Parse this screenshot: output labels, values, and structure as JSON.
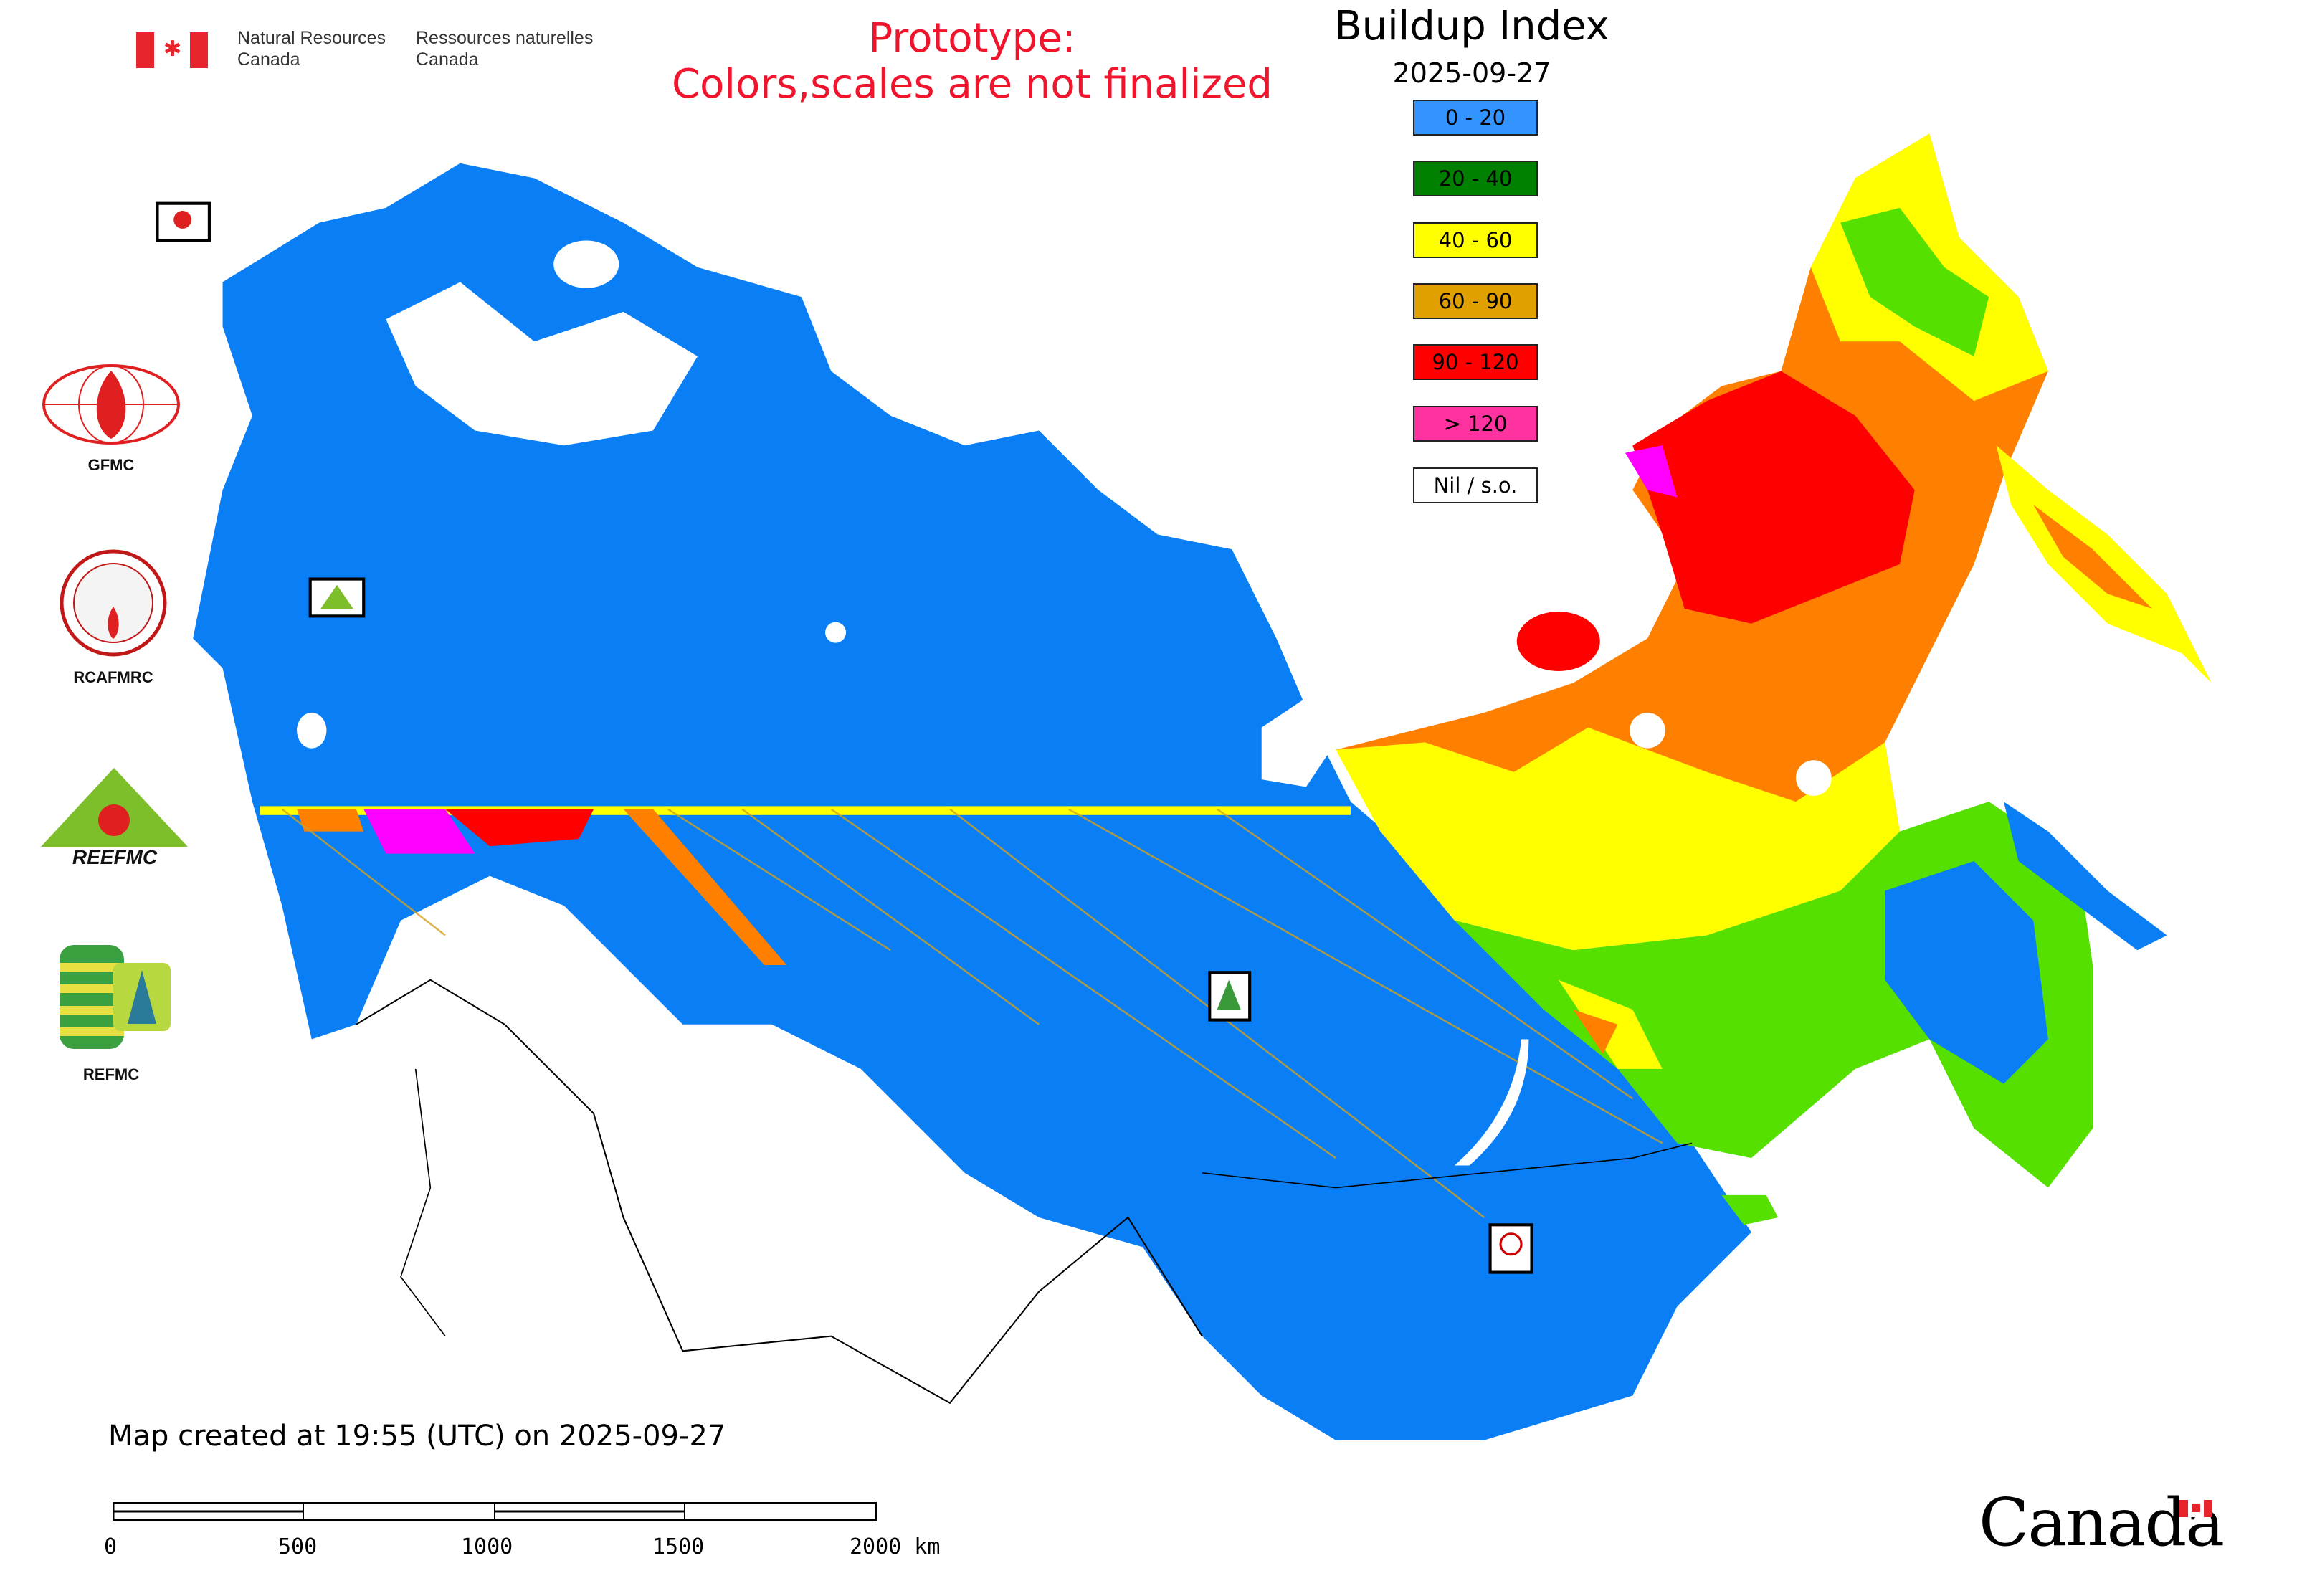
{
  "header": {
    "agency_en": [
      "Natural Resources",
      "Canada"
    ],
    "agency_fr": [
      "Ressources naturelles",
      "Canada"
    ],
    "prototype_line1": "Prototype:",
    "prototype_line2": "Colors,scales are not finalized"
  },
  "legend": {
    "title": "Buildup Index",
    "date": "2025-09-27",
    "items": [
      {
        "label": "0 - 20",
        "color": "#3393ff"
      },
      {
        "label": "20 - 40",
        "color": "#007f00"
      },
      {
        "label": "40 - 60",
        "color": "#ffff00"
      },
      {
        "label": "60 - 90",
        "color": "#e0a000"
      },
      {
        "label": "90 - 120",
        "color": "#ff0000"
      },
      {
        "label": "> 120",
        "color": "#ff33a0"
      },
      {
        "label": "Nil / s.o.",
        "color": "#ffffff"
      }
    ]
  },
  "logos": [
    {
      "label": "GFMC"
    },
    {
      "label": "RCAFMRC"
    },
    {
      "label": "REEFMC"
    },
    {
      "label": "REFMC"
    }
  ],
  "map_colors": {
    "blue": "#0a7ff5",
    "green": "#55e000",
    "yellow": "#ffff00",
    "orange": "#ff8000",
    "red": "#ff0000",
    "magenta": "#ff00ff"
  },
  "footer": {
    "created": "Map created at 19:55 (UTC) on 2025-09-27",
    "scale_labels": [
      "0",
      "500",
      "1000",
      "1500",
      "2000 km"
    ],
    "wordmark": "Canada"
  }
}
